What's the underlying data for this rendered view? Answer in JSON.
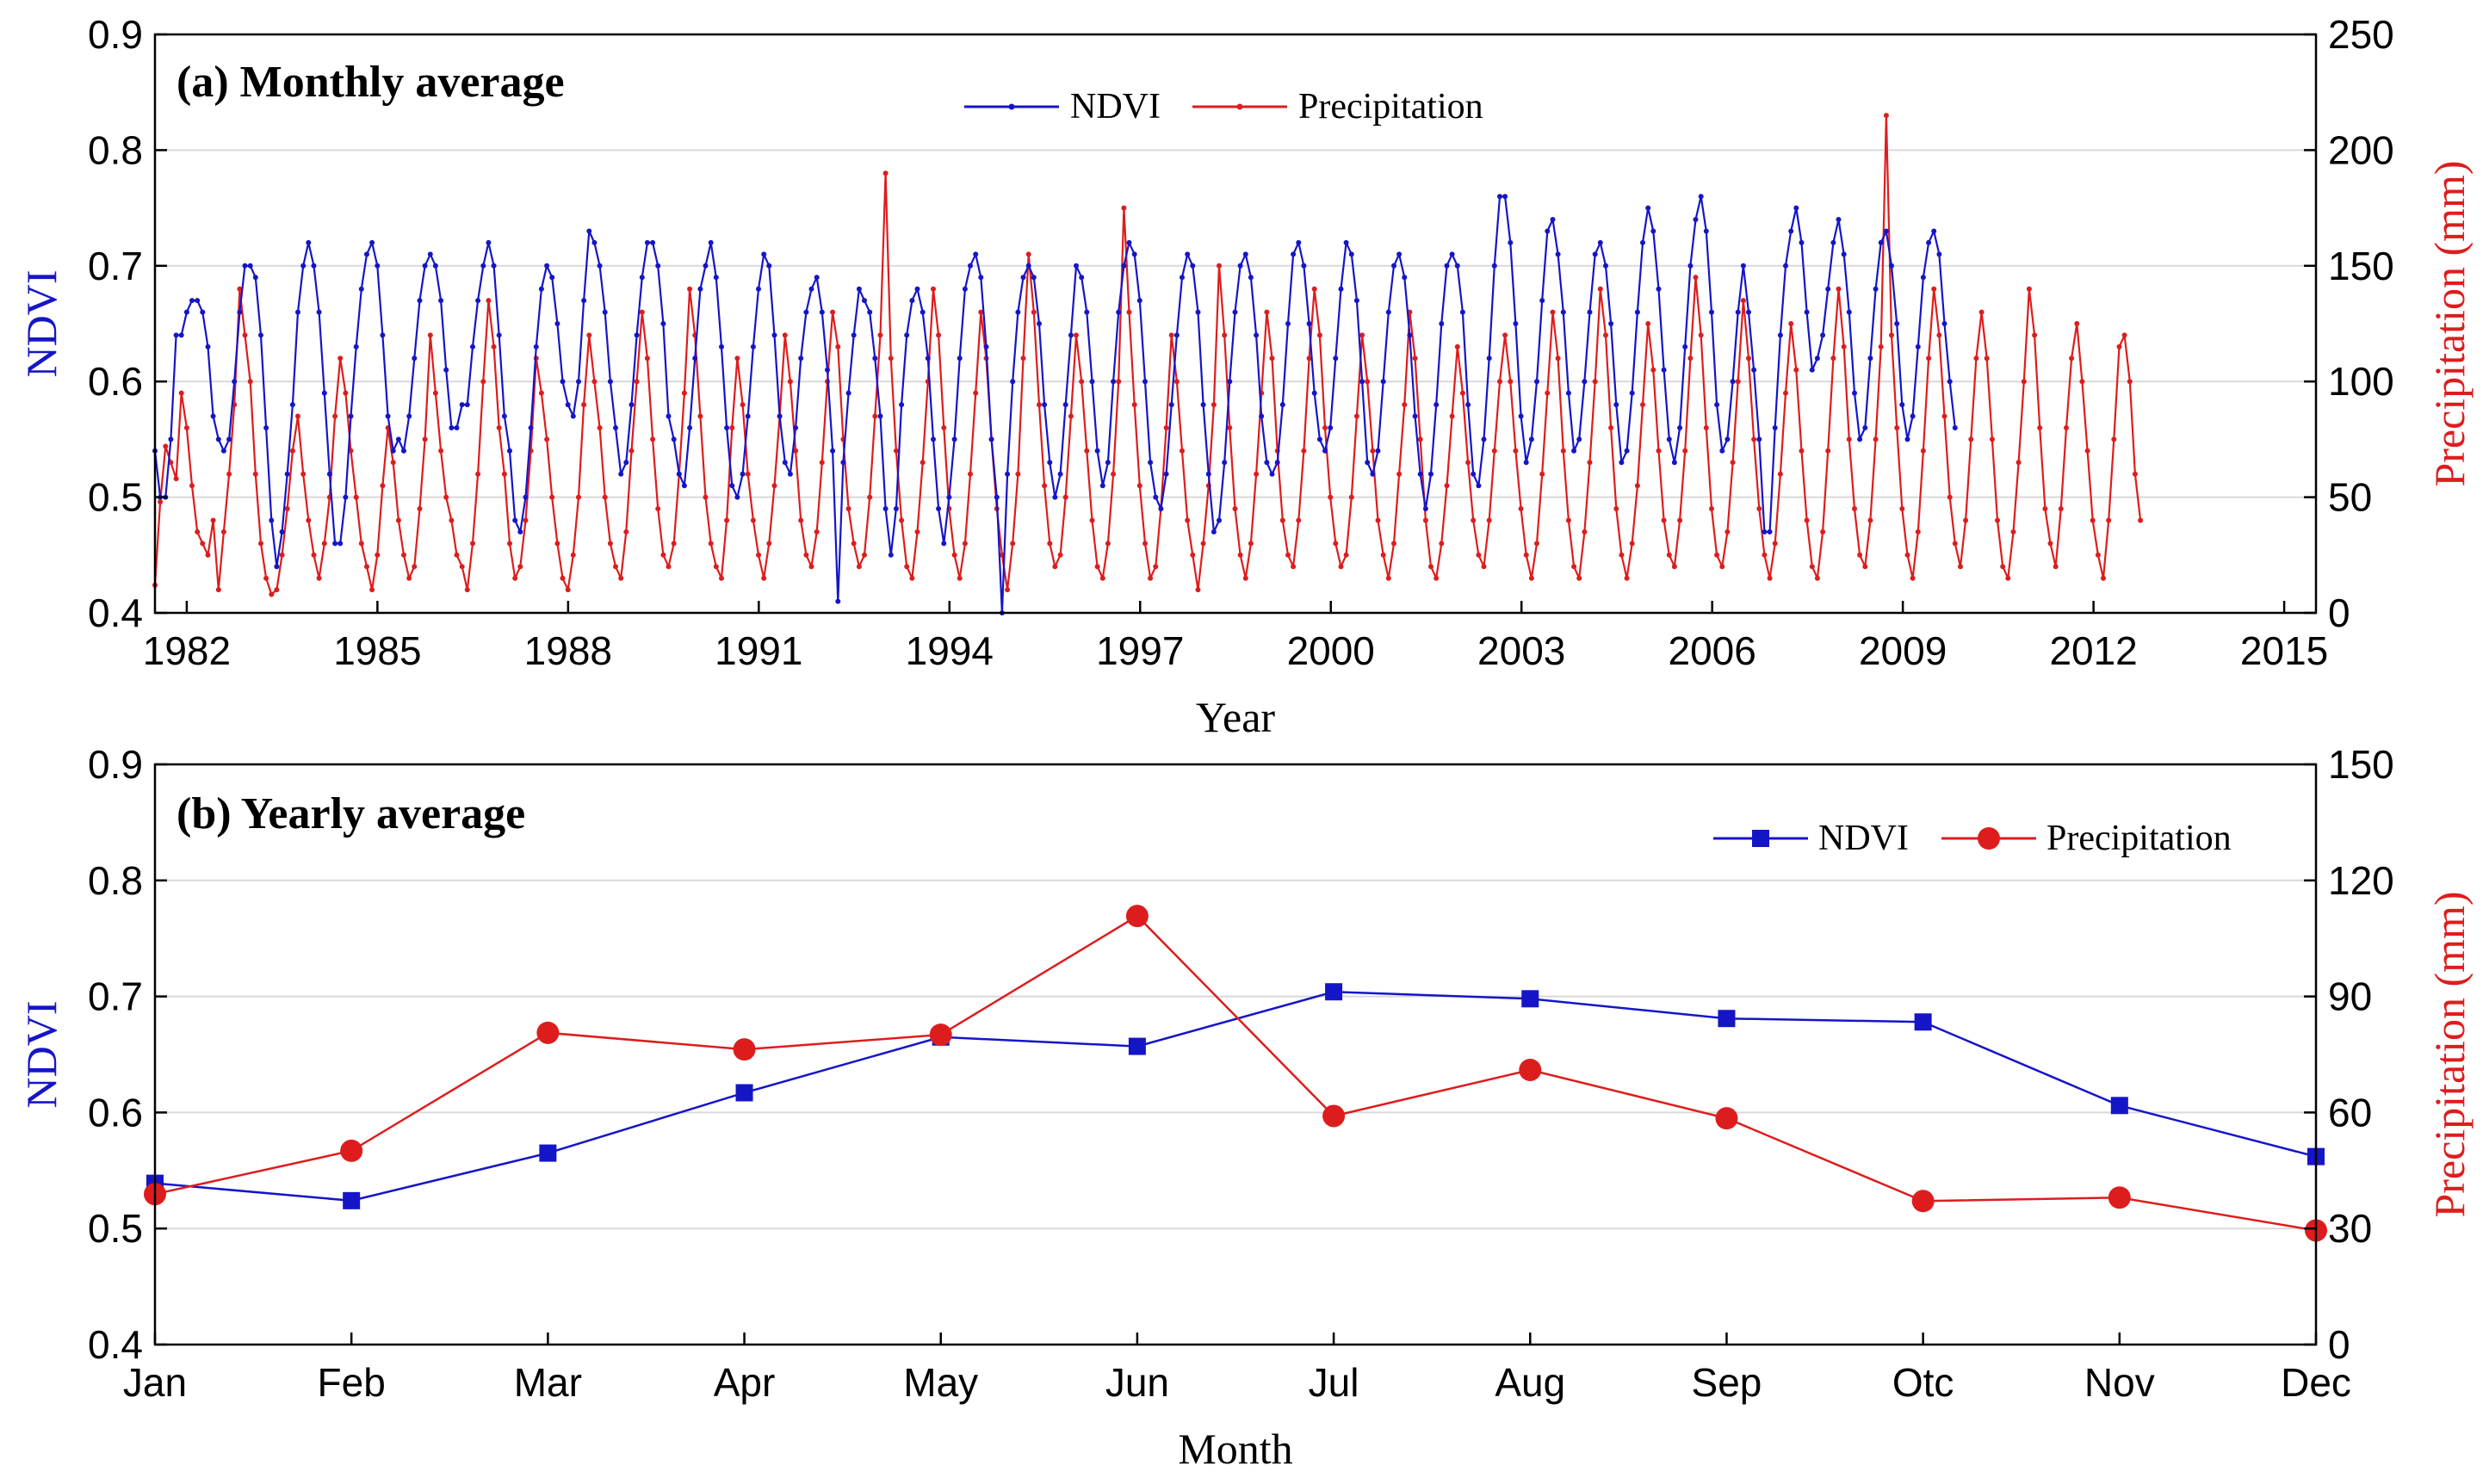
{
  "colors": {
    "ndvi": "#1515c8",
    "precip": "#dd1d1d",
    "grid": "#d9d9d9"
  },
  "chart_data": [
    {
      "type": "line",
      "title": "(a) Monthly average",
      "xlabel": "Year",
      "ylabel_left": "NDVI",
      "ylabel_right": "Precipitation (mm)",
      "xlim": [
        1981.5,
        2015.5
      ],
      "ylim_left": [
        0.4,
        0.9
      ],
      "ylim_right": [
        0,
        250
      ],
      "x_ticks": [
        "1982",
        "1985",
        "1988",
        "1991",
        "1994",
        "1997",
        "2000",
        "2003",
        "2006",
        "2009",
        "2012",
        "2015"
      ],
      "yticks_left": [
        "0.4",
        "0.5",
        "0.6",
        "0.7",
        "0.8",
        "0.9"
      ],
      "yticks_right": [
        "0",
        "50",
        "100",
        "150",
        "200",
        "250"
      ],
      "legend": [
        "NDVI",
        "Precipitation"
      ],
      "grid": true,
      "series": [
        {
          "name": "NDVI",
          "axis": "left",
          "start_year": 1981.5,
          "step_years": 0.0833,
          "values": [
            0.54,
            0.5,
            0.5,
            0.55,
            0.64,
            0.64,
            0.66,
            0.67,
            0.67,
            0.66,
            0.63,
            0.57,
            0.55,
            0.54,
            0.55,
            0.6,
            0.66,
            0.7,
            0.7,
            0.69,
            0.64,
            0.56,
            0.48,
            0.44,
            0.47,
            0.52,
            0.58,
            0.66,
            0.7,
            0.72,
            0.7,
            0.66,
            0.59,
            0.52,
            0.46,
            0.46,
            0.5,
            0.57,
            0.63,
            0.68,
            0.71,
            0.72,
            0.7,
            0.64,
            0.57,
            0.54,
            0.55,
            0.54,
            0.57,
            0.62,
            0.67,
            0.7,
            0.71,
            0.7,
            0.67,
            0.61,
            0.56,
            0.56,
            0.58,
            0.58,
            0.63,
            0.67,
            0.7,
            0.72,
            0.7,
            0.64,
            0.57,
            0.54,
            0.48,
            0.47,
            0.5,
            0.56,
            0.63,
            0.68,
            0.7,
            0.69,
            0.65,
            0.6,
            0.58,
            0.57,
            0.6,
            0.67,
            0.73,
            0.72,
            0.7,
            0.66,
            0.6,
            0.56,
            0.52,
            0.53,
            0.58,
            0.64,
            0.69,
            0.72,
            0.72,
            0.7,
            0.65,
            0.57,
            0.55,
            0.52,
            0.51,
            0.56,
            0.62,
            0.68,
            0.7,
            0.72,
            0.69,
            0.63,
            0.56,
            0.51,
            0.5,
            0.52,
            0.57,
            0.63,
            0.68,
            0.71,
            0.7,
            0.64,
            0.57,
            0.53,
            0.52,
            0.56,
            0.62,
            0.66,
            0.68,
            0.69,
            0.66,
            0.61,
            0.54,
            0.41,
            0.53,
            0.59,
            0.64,
            0.68,
            0.67,
            0.66,
            0.62,
            0.57,
            0.49,
            0.45,
            0.49,
            0.58,
            0.64,
            0.67,
            0.68,
            0.66,
            0.62,
            0.55,
            0.49,
            0.46,
            0.5,
            0.55,
            0.62,
            0.68,
            0.7,
            0.71,
            0.69,
            0.63,
            0.55,
            0.5,
            0.4,
            0.52,
            0.6,
            0.66,
            0.69,
            0.7,
            0.69,
            0.65,
            0.58,
            0.53,
            0.5,
            0.52,
            0.58,
            0.64,
            0.7,
            0.69,
            0.66,
            0.6,
            0.54,
            0.51,
            0.53,
            0.6,
            0.66,
            0.7,
            0.72,
            0.71,
            0.67,
            0.6,
            0.53,
            0.5,
            0.49,
            0.52,
            0.58,
            0.64,
            0.69,
            0.71,
            0.7,
            0.66,
            0.58,
            0.52,
            0.47,
            0.48,
            0.53,
            0.6,
            0.66,
            0.7,
            0.71,
            0.69,
            0.64,
            0.57,
            0.53,
            0.52,
            0.53,
            0.58,
            0.65,
            0.71,
            0.72,
            0.7,
            0.65,
            0.59,
            0.55,
            0.54,
            0.56,
            0.62,
            0.68,
            0.72,
            0.71,
            0.67,
            0.6,
            0.53,
            0.52,
            0.54,
            0.6,
            0.66,
            0.7,
            0.71,
            0.69,
            0.64,
            0.57,
            0.52,
            0.49,
            0.52,
            0.58,
            0.65,
            0.7,
            0.71,
            0.7,
            0.66,
            0.58,
            0.52,
            0.51,
            0.55,
            0.62,
            0.7,
            0.76,
            0.76,
            0.72,
            0.65,
            0.57,
            0.53,
            0.55,
            0.6,
            0.67,
            0.73,
            0.74,
            0.71,
            0.66,
            0.59,
            0.54,
            0.55,
            0.6,
            0.66,
            0.71,
            0.72,
            0.7,
            0.65,
            0.58,
            0.53,
            0.54,
            0.59,
            0.66,
            0.72,
            0.75,
            0.73,
            0.68,
            0.61,
            0.55,
            0.53,
            0.56,
            0.63,
            0.7,
            0.74,
            0.76,
            0.73,
            0.66,
            0.58,
            0.54,
            0.55,
            0.6,
            0.66,
            0.7,
            0.66,
            0.61,
            0.55,
            0.47,
            0.47,
            0.56,
            0.64,
            0.7,
            0.73,
            0.75,
            0.72,
            0.66,
            0.61,
            0.62,
            0.64,
            0.68,
            0.72,
            0.74,
            0.71,
            0.66,
            0.59,
            0.55,
            0.56,
            0.62,
            0.68,
            0.72,
            0.73,
            0.7,
            0.65,
            0.58,
            0.55,
            0.57,
            0.63,
            0.69,
            0.72,
            0.73,
            0.71,
            0.65,
            0.6,
            0.56
          ]
        },
        {
          "name": "Precipitation",
          "axis": "right",
          "start_year": 1981.5,
          "step_years": 0.0833,
          "values": [
            12,
            48,
            72,
            65,
            58,
            95,
            80,
            55,
            35,
            30,
            25,
            40,
            10,
            35,
            60,
            90,
            140,
            120,
            100,
            60,
            30,
            15,
            8,
            10,
            25,
            45,
            70,
            85,
            60,
            40,
            25,
            15,
            30,
            50,
            85,
            110,
            95,
            70,
            50,
            30,
            20,
            10,
            25,
            55,
            80,
            65,
            40,
            25,
            15,
            20,
            45,
            75,
            120,
            95,
            70,
            50,
            40,
            25,
            20,
            10,
            30,
            60,
            100,
            135,
            115,
            80,
            60,
            30,
            15,
            20,
            40,
            70,
            110,
            95,
            75,
            50,
            30,
            15,
            10,
            25,
            50,
            90,
            120,
            100,
            80,
            50,
            30,
            20,
            15,
            35,
            70,
            100,
            130,
            110,
            75,
            45,
            25,
            20,
            30,
            60,
            95,
            140,
            120,
            85,
            50,
            30,
            20,
            15,
            40,
            80,
            110,
            90,
            60,
            40,
            25,
            15,
            30,
            55,
            85,
            120,
            100,
            70,
            40,
            25,
            20,
            35,
            65,
            100,
            130,
            115,
            75,
            45,
            30,
            20,
            25,
            50,
            85,
            120,
            190,
            110,
            70,
            40,
            20,
            15,
            35,
            65,
            100,
            140,
            120,
            80,
            45,
            25,
            15,
            30,
            60,
            95,
            130,
            110,
            75,
            45,
            25,
            10,
            30,
            60,
            110,
            155,
            130,
            90,
            55,
            30,
            20,
            25,
            50,
            85,
            120,
            100,
            70,
            40,
            20,
            15,
            30,
            60,
            100,
            175,
            130,
            90,
            55,
            30,
            15,
            20,
            45,
            80,
            120,
            100,
            70,
            40,
            25,
            10,
            30,
            55,
            90,
            150,
            120,
            80,
            45,
            25,
            15,
            30,
            60,
            95,
            130,
            110,
            70,
            40,
            25,
            20,
            40,
            70,
            110,
            140,
            120,
            80,
            50,
            30,
            20,
            25,
            50,
            85,
            120,
            100,
            70,
            40,
            25,
            15,
            30,
            60,
            90,
            130,
            110,
            75,
            40,
            20,
            15,
            30,
            55,
            85,
            115,
            95,
            65,
            40,
            25,
            20,
            40,
            70,
            100,
            120,
            100,
            70,
            45,
            25,
            15,
            30,
            60,
            95,
            130,
            110,
            70,
            40,
            20,
            15,
            35,
            65,
            100,
            140,
            120,
            80,
            45,
            25,
            15,
            30,
            55,
            90,
            125,
            105,
            70,
            40,
            25,
            20,
            40,
            70,
            110,
            145,
            120,
            80,
            45,
            25,
            20,
            35,
            65,
            100,
            135,
            110,
            75,
            45,
            25,
            15,
            30,
            60,
            95,
            125,
            105,
            70,
            40,
            20,
            15,
            35,
            70,
            110,
            140,
            115,
            75,
            45,
            25,
            20,
            40,
            75,
            115,
            215,
            120,
            80,
            45,
            25,
            15,
            35,
            70,
            110,
            140,
            120,
            85,
            50,
            30,
            20,
            40,
            75,
            110,
            130,
            110,
            75,
            40,
            20,
            15,
            35,
            65,
            100,
            140,
            120,
            80,
            45,
            30,
            20,
            45,
            80,
            110,
            125,
            100,
            70,
            40,
            25,
            15,
            40,
            75,
            115,
            120,
            100,
            60,
            40
          ]
        }
      ]
    },
    {
      "type": "line",
      "title": "(b) Yearly average",
      "xlabel": "Month",
      "ylabel_left": "NDVI",
      "ylabel_right": "Precipitation (mm)",
      "categories": [
        "Jan",
        "Feb",
        "Mar",
        "Apr",
        "May",
        "Jun",
        "Jul",
        "Aug",
        "Sep",
        "Otc",
        "Nov",
        "Dec"
      ],
      "ylim_left": [
        0.4,
        0.9
      ],
      "ylim_right": [
        0,
        150
      ],
      "yticks_left": [
        "0.4",
        "0.5",
        "0.6",
        "0.7",
        "0.8",
        "0.9"
      ],
      "yticks_right": [
        "0",
        "30",
        "60",
        "90",
        "120",
        "150"
      ],
      "legend": [
        "NDVI",
        "Precipitation"
      ],
      "grid": true,
      "series": [
        {
          "name": "NDVI",
          "axis": "left",
          "marker": "square",
          "values": [
            0.539,
            0.524,
            0.565,
            0.617,
            0.665,
            0.657,
            0.704,
            0.698,
            0.681,
            0.678,
            0.606,
            0.562
          ]
        },
        {
          "name": "Precipitation",
          "axis": "right",
          "marker": "circle",
          "values": [
            38.9,
            50.1,
            80.6,
            76.3,
            80.1,
            110.8,
            59.1,
            71.0,
            58.5,
            37.1,
            38.0,
            29.5
          ]
        }
      ]
    }
  ]
}
